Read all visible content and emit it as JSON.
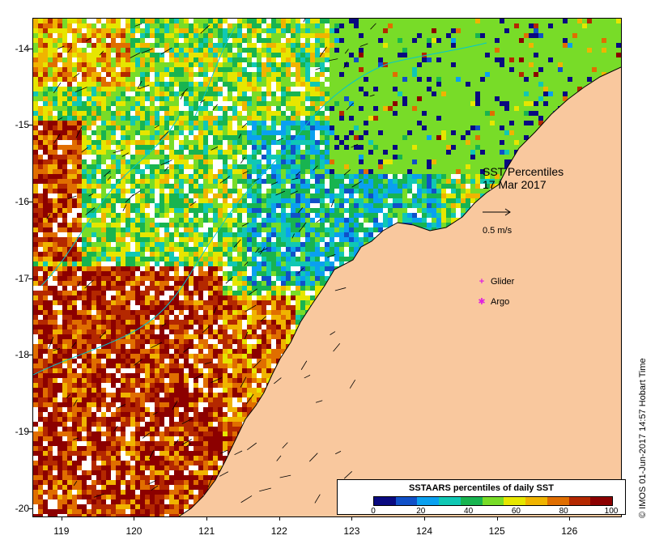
{
  "map": {
    "lat_ticks": [
      "-14",
      "-15",
      "-16",
      "-17",
      "-18",
      "-19",
      "-20"
    ],
    "lon_ticks": [
      "119",
      "120",
      "121",
      "122",
      "123",
      "124",
      "125",
      "126"
    ],
    "lat_range": [
      -13.6,
      -20.1
    ],
    "lon_range": [
      118.6,
      126.7
    ]
  },
  "annotation": {
    "title": "SST Percentiles",
    "date": "17 Mar 2017",
    "arrow_label": "0.5 m/s"
  },
  "legend": {
    "items": [
      {
        "symbol": "+",
        "label": "Glider",
        "color": "#e020e0"
      },
      {
        "symbol": "✱",
        "label": "Argo",
        "color": "#e020e0"
      }
    ]
  },
  "colorbar": {
    "title": "SSTAARS percentiles of daily SST",
    "ticks": [
      "0",
      "20",
      "40",
      "60",
      "80",
      "100"
    ],
    "colors": [
      "#0a0a80",
      "#1050c8",
      "#0aa0f0",
      "#10c8b4",
      "#18b450",
      "#78dc28",
      "#e6e600",
      "#f0b400",
      "#e06e00",
      "#b42800",
      "#8c0000"
    ]
  },
  "credit": "© IMOS 01-Jun-2017 14:57 Hobart Time",
  "colors": {
    "land": "#f9c89e",
    "cloud": "#ffffff",
    "contour": "#00c8d0"
  }
}
